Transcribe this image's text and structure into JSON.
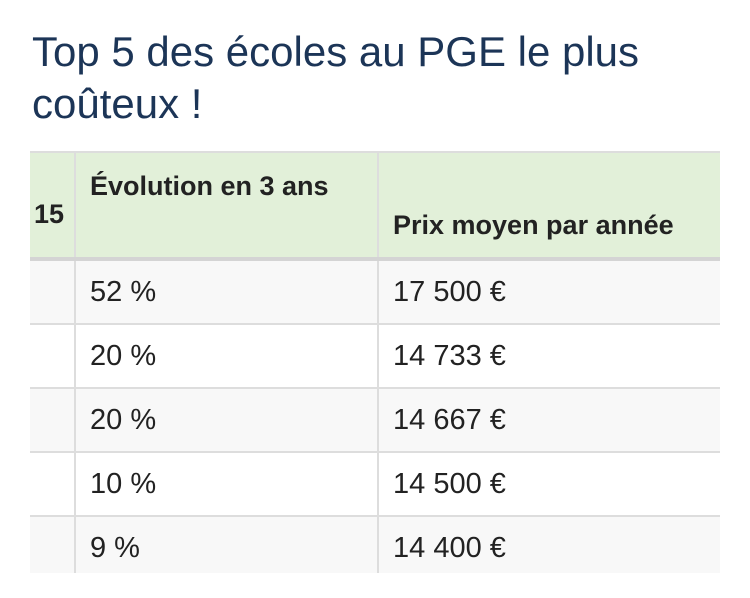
{
  "article": {
    "title": "Top 5 des écoles au PGE le plus coûteux !"
  },
  "table": {
    "headers": {
      "first_col_partial": "15",
      "evolution": "Évolution en 3 ans",
      "prix": "Prix moyen par année"
    },
    "rows": [
      {
        "first": "",
        "evolution": "52 %",
        "prix": "17 500 €"
      },
      {
        "first": "",
        "evolution": "20 %",
        "prix": "14 733 €"
      },
      {
        "first": "",
        "evolution": "20 %",
        "prix": "14 667 €"
      },
      {
        "first": "",
        "evolution": "10 %",
        "prix": "14 500 €"
      },
      {
        "first": "",
        "evolution": "9 %",
        "prix": "14 400 €"
      }
    ]
  },
  "colors": {
    "title": "#1c3557",
    "header_background": "#e2f0d9",
    "row_stripe": "#f8f8f8",
    "border": "#dddddd"
  }
}
